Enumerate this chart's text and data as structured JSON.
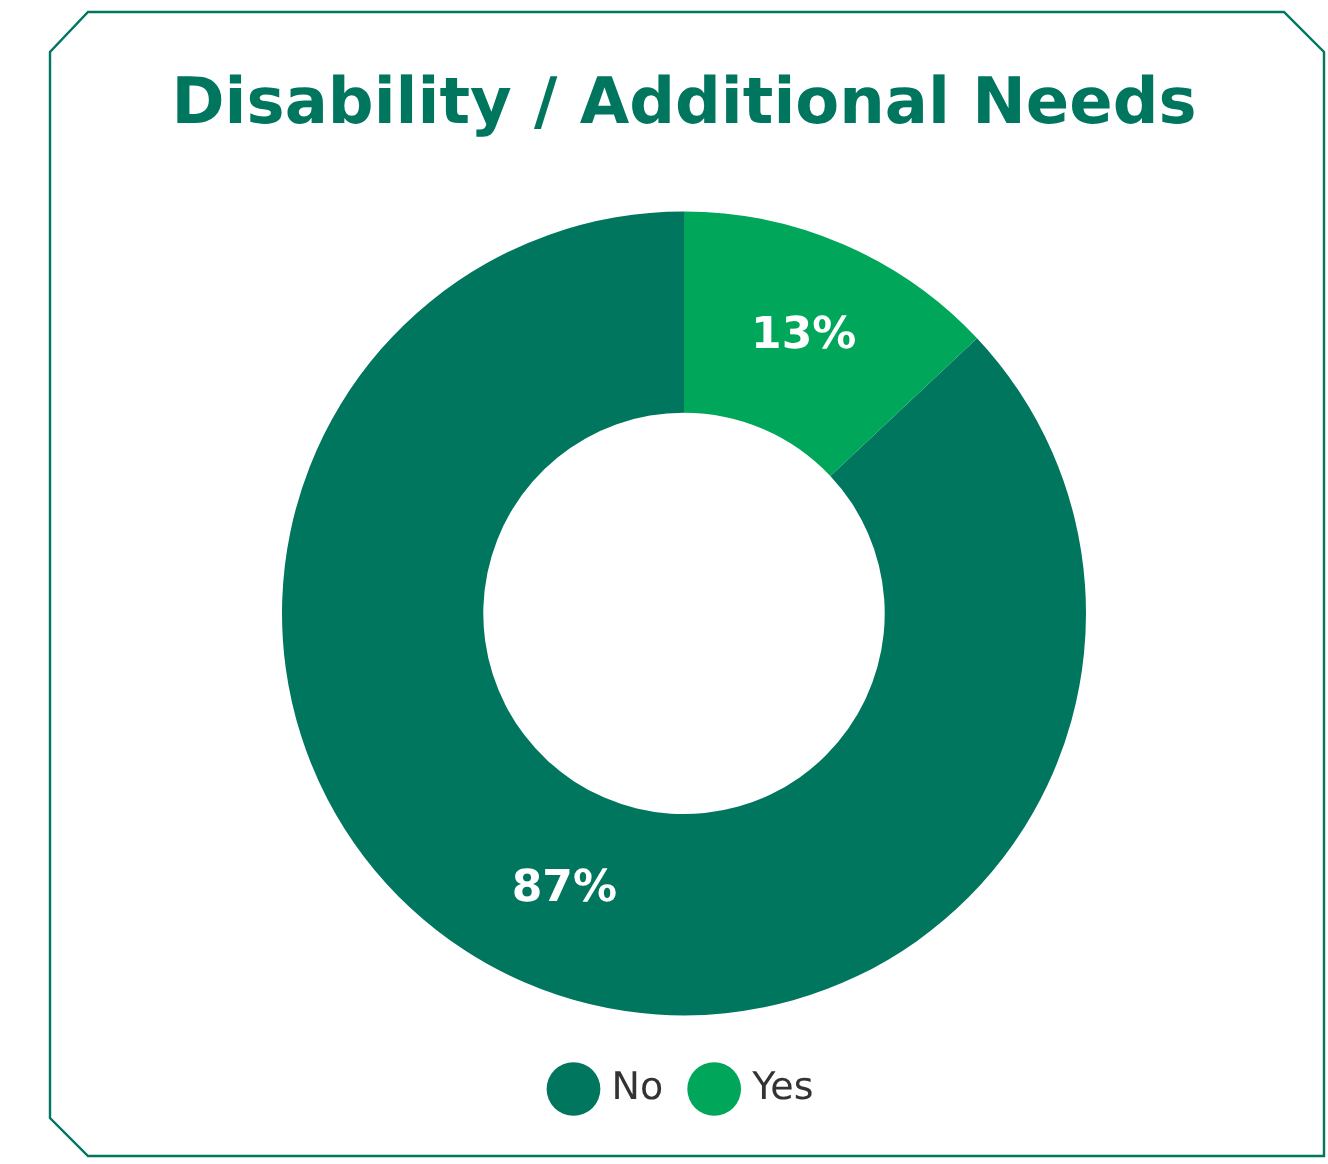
{
  "chart_data": {
    "type": "donut",
    "title": "Disability / Additional Needs",
    "categories": [
      "No",
      "Yes"
    ],
    "values": [
      87,
      13
    ],
    "colors": [
      "#00765f",
      "#00a65a"
    ],
    "value_labels": [
      "87%",
      "13%"
    ],
    "legend": "bottom"
  }
}
